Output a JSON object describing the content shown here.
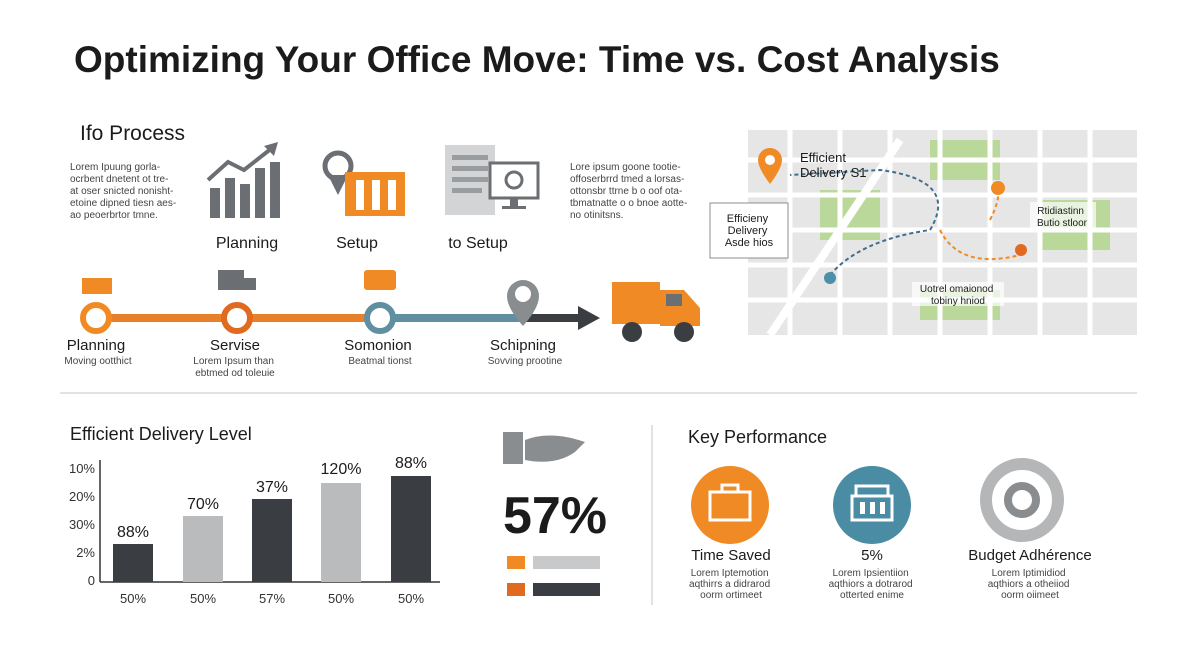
{
  "header": {
    "title": "Optimizing Your Office Move: Time vs. Cost Analysis"
  },
  "process": {
    "heading": "Ifo Process",
    "left_text": [
      "Lorem Ipuung gorla-",
      "ocrbent dnetent ot tre-",
      "at oser snicted nonisht-",
      "etoine dipned tiesn aes-",
      "ao peoerbrtor tmne."
    ],
    "right_text": [
      "Lore ipsum goone tootie-",
      "offoserbrrd tmed a lorsas-",
      "ottonsbr ttrne b o oof ota-",
      "tbmatnatte o o bnoe aotte-",
      "no otinitsns."
    ],
    "icons": [
      "Planning",
      "Setup",
      "to Setup"
    ],
    "timeline": [
      {
        "title": "Planning",
        "text": [
          "Moving ootthict"
        ]
      },
      {
        "title": "Servise",
        "text": [
          "Lorem Ipsum than",
          "ebtmed od toleuie"
        ]
      },
      {
        "title": "Somonion",
        "text": [
          "Beatmal tionst"
        ]
      },
      {
        "title": "Schipning",
        "text": [
          "Sovving prootine"
        ]
      }
    ]
  },
  "map": {
    "pin_label": [
      "Efficient",
      "Delivery S1"
    ],
    "callout": [
      "Efficieny",
      "Delivery",
      "Asde hios"
    ],
    "right_label": [
      "Rtidiastinn",
      "Butio stloor"
    ],
    "bottom_label": [
      "Uotrel omaionod",
      "tobiny hniod"
    ]
  },
  "bar_panel": {
    "title": "Efficient Delivery Level",
    "y_labels": [
      "10%",
      "20%",
      "30%",
      "2%",
      "0"
    ],
    "bar_labels": [
      "88%",
      "70%",
      "37%",
      "120%",
      "88%"
    ],
    "x_labels": [
      "50%",
      "50%",
      "57%",
      "50%",
      "50%"
    ]
  },
  "stat": {
    "value": "57%"
  },
  "key_performance": {
    "heading": "Key Performance",
    "items": [
      {
        "title": "Time Saved",
        "text": [
          "Lorem Iptemotion",
          "aqthirrs a didrarod",
          "oorm ortimeet"
        ]
      },
      {
        "title": "5%",
        "text": [
          "Lorem Ipsientiion",
          "aqthiors a dotrarod",
          "otterted enime"
        ]
      },
      {
        "title": "Budget Adhérence",
        "text": [
          "Lorem Iptimidiod",
          "aqthiors a otheiiod",
          "oorm oiimeet"
        ]
      }
    ]
  }
}
